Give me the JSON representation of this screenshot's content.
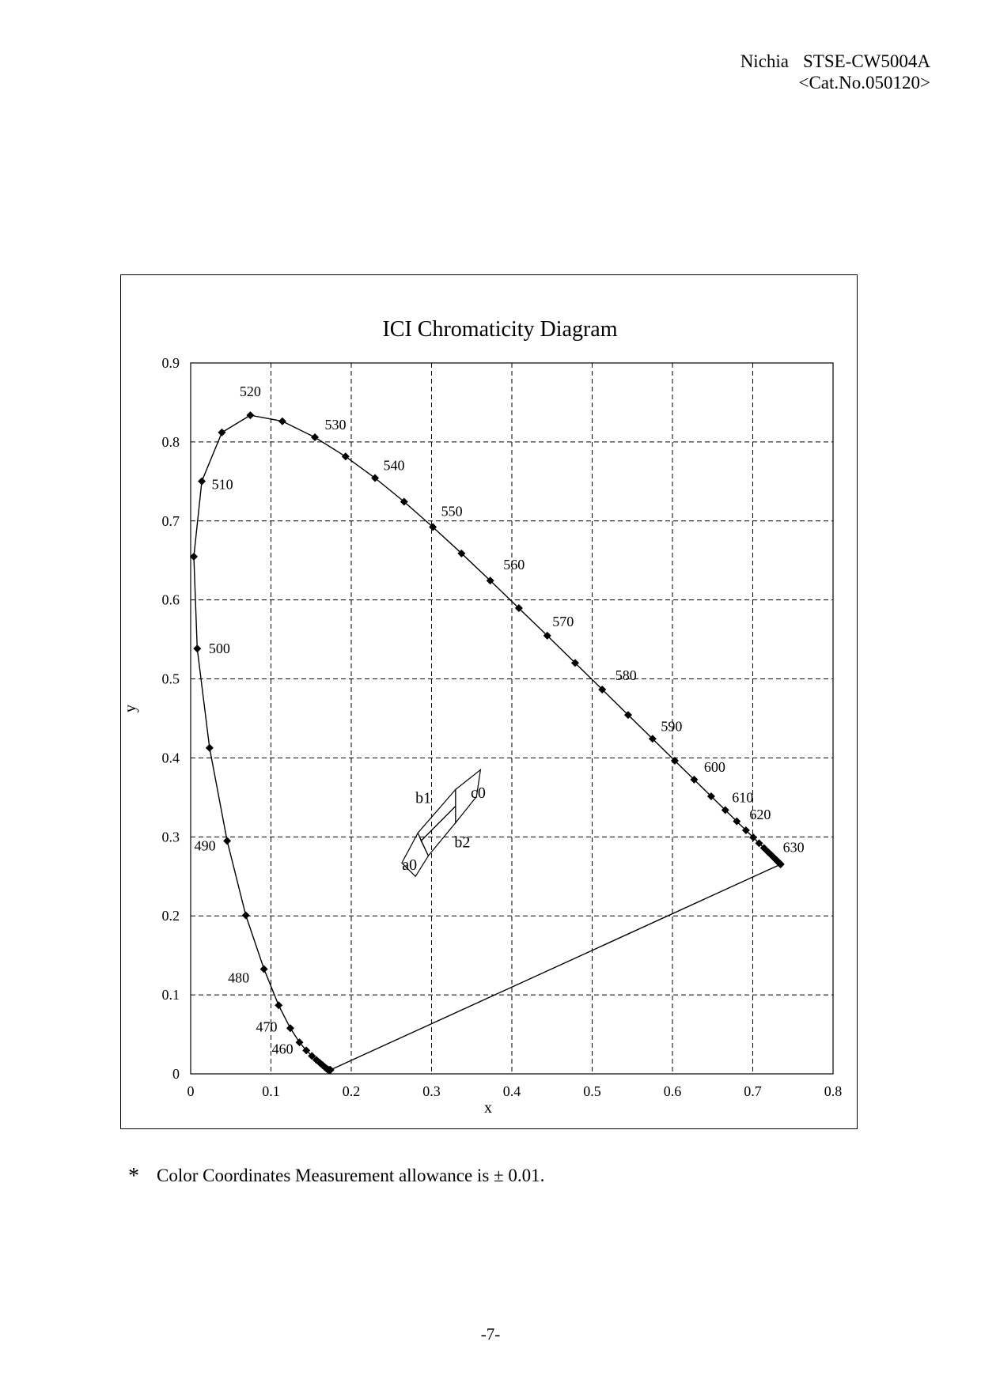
{
  "header": {
    "company": "Nichia",
    "doc_code": "STSE-CW5004A",
    "catalog": "<Cat.No.050120>"
  },
  "footnote": {
    "mark": "*",
    "text": "Color Coordinates Measurement allowance is ± 0.01."
  },
  "page_number": "-7-",
  "chart_data": {
    "type": "scatter",
    "title": "ICI Chromaticity Diagram",
    "xlabel": "x",
    "ylabel": "y",
    "xlim": [
      0,
      0.8
    ],
    "ylim": [
      0,
      0.9
    ],
    "x_ticks": [
      "0",
      "0.1",
      "0.2",
      "0.3",
      "0.4",
      "0.5",
      "0.6",
      "0.7",
      "0.8"
    ],
    "y_ticks": [
      "0",
      "0.1",
      "0.2",
      "0.3",
      "0.4",
      "0.5",
      "0.6",
      "0.7",
      "0.8",
      "0.9"
    ],
    "grid": true,
    "grid_style": "dashed",
    "spectral_locus": {
      "points": [
        [
          0.1741,
          0.005
        ],
        [
          0.1738,
          0.0049
        ],
        [
          0.1736,
          0.0049
        ],
        [
          0.1733,
          0.0048
        ],
        [
          0.173,
          0.0048
        ],
        [
          0.1726,
          0.0048
        ],
        [
          0.1721,
          0.0048
        ],
        [
          0.1714,
          0.0051
        ],
        [
          0.1703,
          0.0058
        ],
        [
          0.1689,
          0.0069
        ],
        [
          0.1669,
          0.0086
        ],
        [
          0.1644,
          0.0109
        ],
        [
          0.1611,
          0.0138
        ],
        [
          0.1566,
          0.0177
        ],
        [
          0.151,
          0.0227
        ],
        [
          0.144,
          0.0297
        ],
        [
          0.1355,
          0.0399
        ],
        [
          0.1241,
          0.0578
        ],
        [
          0.1096,
          0.0868
        ],
        [
          0.0913,
          0.1327
        ],
        [
          0.0687,
          0.2007
        ],
        [
          0.0454,
          0.295
        ],
        [
          0.0235,
          0.4127
        ],
        [
          0.0082,
          0.5384
        ],
        [
          0.0039,
          0.6548
        ],
        [
          0.0139,
          0.7502
        ],
        [
          0.0389,
          0.812
        ],
        [
          0.0743,
          0.8338
        ],
        [
          0.1142,
          0.8262
        ],
        [
          0.1547,
          0.8059
        ],
        [
          0.1929,
          0.7816
        ],
        [
          0.2296,
          0.7543
        ],
        [
          0.2658,
          0.7243
        ],
        [
          0.3016,
          0.6923
        ],
        [
          0.3373,
          0.6589
        ],
        [
          0.3731,
          0.6245
        ],
        [
          0.4087,
          0.5896
        ],
        [
          0.4441,
          0.5547
        ],
        [
          0.4788,
          0.5202
        ],
        [
          0.5125,
          0.4866
        ],
        [
          0.5448,
          0.4544
        ],
        [
          0.5752,
          0.4242
        ],
        [
          0.6029,
          0.3965
        ],
        [
          0.627,
          0.3725
        ],
        [
          0.6482,
          0.3514
        ],
        [
          0.6658,
          0.334
        ],
        [
          0.6801,
          0.3197
        ],
        [
          0.6915,
          0.3083
        ],
        [
          0.7006,
          0.2993
        ],
        [
          0.7079,
          0.292
        ],
        [
          0.714,
          0.2859
        ],
        [
          0.719,
          0.2809
        ],
        [
          0.723,
          0.277
        ],
        [
          0.726,
          0.274
        ],
        [
          0.7283,
          0.2717
        ],
        [
          0.73,
          0.27
        ],
        [
          0.7311,
          0.2689
        ],
        [
          0.732,
          0.268
        ],
        [
          0.7327,
          0.2673
        ],
        [
          0.7334,
          0.2666
        ],
        [
          0.734,
          0.266
        ],
        [
          0.7344,
          0.2656
        ],
        [
          0.7346,
          0.2654
        ],
        [
          0.7347,
          0.2653
        ]
      ]
    },
    "wavelength_labels": [
      {
        "text": "460",
        "x": 0.144,
        "y": 0.0297
      },
      {
        "text": "470",
        "x": 0.1241,
        "y": 0.0578
      },
      {
        "text": "480",
        "x": 0.0913,
        "y": 0.1327
      },
      {
        "text": "490",
        "x": 0.0454,
        "y": 0.295
      },
      {
        "text": "500",
        "x": 0.0082,
        "y": 0.5384
      },
      {
        "text": "510",
        "x": 0.0139,
        "y": 0.7502
      },
      {
        "text": "520",
        "x": 0.0743,
        "y": 0.8338
      },
      {
        "text": "530",
        "x": 0.1547,
        "y": 0.8059
      },
      {
        "text": "540",
        "x": 0.2296,
        "y": 0.7543
      },
      {
        "text": "550",
        "x": 0.3016,
        "y": 0.6923
      },
      {
        "text": "560",
        "x": 0.3731,
        "y": 0.6245
      },
      {
        "text": "570",
        "x": 0.4441,
        "y": 0.5547
      },
      {
        "text": "580",
        "x": 0.5125,
        "y": 0.4866
      },
      {
        "text": "590",
        "x": 0.5752,
        "y": 0.4242
      },
      {
        "text": "600",
        "x": 0.627,
        "y": 0.3725
      },
      {
        "text": "610",
        "x": 0.6658,
        "y": 0.334
      },
      {
        "text": "620",
        "x": 0.6915,
        "y": 0.3083
      },
      {
        "text": "630",
        "x": 0.7311,
        "y": 0.2689
      }
    ],
    "ranks": [
      {
        "name": "a0",
        "corners": [
          [
            0.28,
            0.25
          ],
          [
            0.263,
            0.267
          ],
          [
            0.283,
            0.305
          ],
          [
            0.296,
            0.276
          ]
        ]
      },
      {
        "name": "b1",
        "corners": [
          [
            0.283,
            0.305
          ],
          [
            0.33,
            0.36
          ],
          [
            0.33,
            0.339
          ],
          [
            0.287,
            0.295
          ]
        ]
      },
      {
        "name": "b2",
        "corners": [
          [
            0.296,
            0.276
          ],
          [
            0.33,
            0.318
          ],
          [
            0.33,
            0.339
          ],
          [
            0.287,
            0.295
          ]
        ]
      },
      {
        "name": "c0",
        "corners": [
          [
            0.33,
            0.36
          ],
          [
            0.361,
            0.385
          ],
          [
            0.356,
            0.351
          ],
          [
            0.33,
            0.318
          ]
        ]
      }
    ]
  }
}
